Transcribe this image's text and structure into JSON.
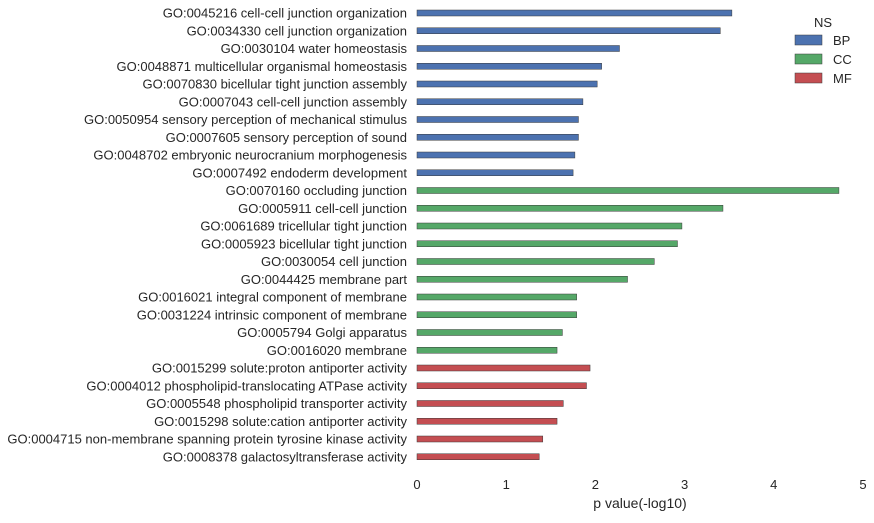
{
  "chart_data": {
    "type": "bar",
    "orientation": "horizontal",
    "title": "",
    "xlabel": "p value(-log10)",
    "ylabel": "",
    "xlim": [
      0,
      5
    ],
    "xticks": [
      "0",
      "1",
      "2",
      "3",
      "4",
      "5"
    ],
    "grid": false,
    "legend": {
      "title": "NS",
      "placement": "top-right",
      "entries": [
        {
          "name": "BP",
          "color": "#4c72b0"
        },
        {
          "name": "CC",
          "color": "#55a868"
        },
        {
          "name": "MF",
          "color": "#c44e52"
        }
      ]
    },
    "categories": [
      "GO:0045216 cell-cell junction organization",
      "GO:0034330 cell junction organization",
      "GO:0030104 water homeostasis",
      "GO:0048871 multicellular organismal homeostasis",
      "GO:0070830 bicellular tight junction assembly",
      "GO:0007043 cell-cell junction assembly",
      "GO:0050954 sensory perception of mechanical stimulus",
      "GO:0007605 sensory perception of sound",
      "GO:0048702 embryonic neurocranium morphogenesis",
      "GO:0007492 endoderm development",
      "GO:0070160 occluding junction",
      "GO:0005911 cell-cell junction",
      "GO:0061689 tricellular tight junction",
      "GO:0005923 bicellular tight junction",
      "GO:0030054 cell junction",
      "GO:0044425 membrane part",
      "GO:0016021 integral component of membrane",
      "GO:0031224 intrinsic component of membrane",
      "GO:0005794 Golgi apparatus",
      "GO:0016020 membrane",
      "GO:0015299 solute:proton antiporter activity",
      "GO:0004012 phospholipid-translocating ATPase activity",
      "GO:0005548 phospholipid transporter activity",
      "GO:0015298 solute:cation antiporter activity",
      "GO:0004715 non-membrane spanning protein tyrosine kinase activity",
      "GO:0008378 galactosyltransferase activity"
    ],
    "values": [
      3.53,
      3.4,
      2.27,
      2.07,
      2.02,
      1.86,
      1.81,
      1.81,
      1.77,
      1.75,
      4.73,
      3.43,
      2.97,
      2.92,
      2.66,
      2.36,
      1.79,
      1.79,
      1.63,
      1.57,
      1.94,
      1.9,
      1.64,
      1.57,
      1.41,
      1.37
    ],
    "groups": [
      "BP",
      "BP",
      "BP",
      "BP",
      "BP",
      "BP",
      "BP",
      "BP",
      "BP",
      "BP",
      "CC",
      "CC",
      "CC",
      "CC",
      "CC",
      "CC",
      "CC",
      "CC",
      "CC",
      "CC",
      "MF",
      "MF",
      "MF",
      "MF",
      "MF",
      "MF"
    ]
  }
}
